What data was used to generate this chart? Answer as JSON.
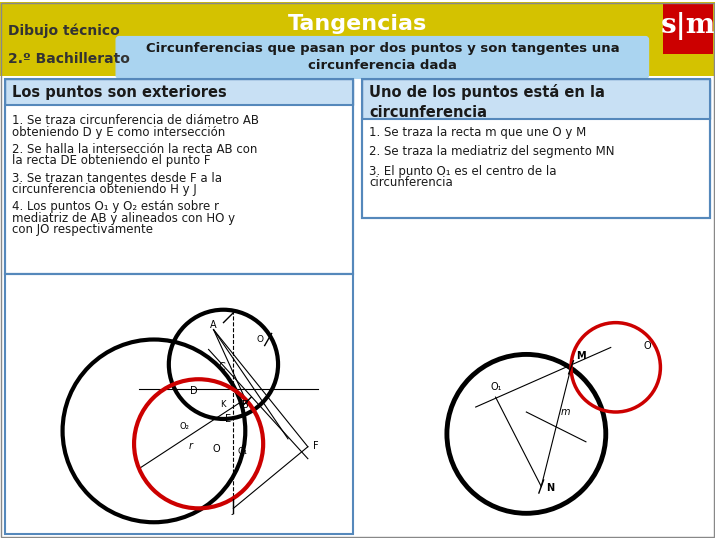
{
  "title": "Tangencias",
  "subtitle_label": "Dibujo técnico",
  "subtitle_grade": "2.º Bachillerato",
  "subtitle_topic": "Circunferencias que pasan por dos puntos y son tangentes una\ncircunferencia dada",
  "header_bg": "#d4c200",
  "header_text_color": "#ffffff",
  "sm_box_color": "#cc0000",
  "left_box_title": "Los puntos son exteriores",
  "left_box_bg": "#c8e0f4",
  "left_box_border": "#5588bb",
  "right_box_title": "Uno de los puntos está en la\ncircunferencia",
  "right_box_bg": "#c8e0f4",
  "right_box_border": "#5588bb",
  "content_bg": "#ffffff",
  "left_steps": [
    "1. Se traza circunferencia de diámetro AB\nobteniendo D y E como intersección",
    "2. Se halla la intersección la recta AB con\nla recta DE obteniendo el punto F",
    "3. Se trazan tangentes desde F a la\ncircunferencia obteniendo H y J",
    "4. Los puntos O₁ y O₂ están sobre r\nmediatriz de AB y alineados con HO y\ncon JO respectivamente"
  ],
  "right_steps": [
    "1. Se traza la recta m que une O y M",
    "2. Se traza la mediatriz del segmento MN",
    "3. El punto O₁ es el centro de la\ncircunferencia"
  ],
  "inner_box_bg": "#ffffff",
  "inner_box_border": "#5588bb"
}
